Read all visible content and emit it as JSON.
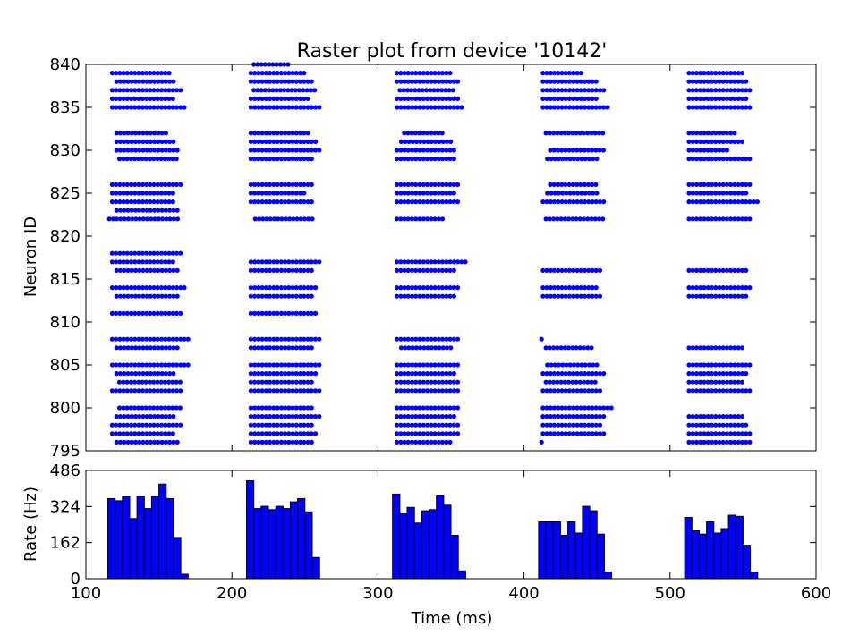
{
  "chart_data": [
    {
      "type": "scatter",
      "title": "Raster plot from device '10142'",
      "xlabel": "",
      "ylabel": "Neuron ID",
      "xlim": [
        100,
        600
      ],
      "ylim": [
        795,
        840
      ],
      "xticks": [],
      "yticks": [
        795,
        800,
        805,
        810,
        815,
        820,
        825,
        830,
        835,
        840
      ],
      "grid": false,
      "marker_color": "#0000ff",
      "bursts": [
        {
          "rows": [
            {
              "id": 839,
              "t0": 118,
              "t1": 158
            },
            {
              "id": 838,
              "t0": 121,
              "t1": 162
            },
            {
              "id": 837,
              "t0": 118,
              "t1": 165
            },
            {
              "id": 836,
              "t0": 118,
              "t1": 160
            },
            {
              "id": 835,
              "t0": 118,
              "t1": 168
            },
            {
              "id": 832,
              "t0": 121,
              "t1": 155
            },
            {
              "id": 831,
              "t0": 121,
              "t1": 160
            },
            {
              "id": 830,
              "t0": 121,
              "t1": 165
            },
            {
              "id": 829,
              "t0": 123,
              "t1": 162
            },
            {
              "id": 826,
              "t0": 118,
              "t1": 165
            },
            {
              "id": 825,
              "t0": 118,
              "t1": 160
            },
            {
              "id": 824,
              "t0": 118,
              "t1": 162
            },
            {
              "id": 823,
              "t0": 121,
              "t1": 165
            },
            {
              "id": 822,
              "t0": 116,
              "t1": 165
            },
            {
              "id": 818,
              "t0": 118,
              "t1": 165
            },
            {
              "id": 817,
              "t0": 118,
              "t1": 160
            },
            {
              "id": 816,
              "t0": 121,
              "t1": 165
            },
            {
              "id": 814,
              "t0": 118,
              "t1": 168
            },
            {
              "id": 813,
              "t0": 121,
              "t1": 165
            },
            {
              "id": 811,
              "t0": 118,
              "t1": 165
            },
            {
              "id": 808,
              "t0": 118,
              "t1": 170
            },
            {
              "id": 807,
              "t0": 121,
              "t1": 165
            },
            {
              "id": 805,
              "t0": 118,
              "t1": 170
            },
            {
              "id": 804,
              "t0": 121,
              "t1": 162
            },
            {
              "id": 803,
              "t0": 123,
              "t1": 165
            },
            {
              "id": 802,
              "t0": 118,
              "t1": 165
            },
            {
              "id": 800,
              "t0": 123,
              "t1": 165
            },
            {
              "id": 799,
              "t0": 121,
              "t1": 162
            },
            {
              "id": 798,
              "t0": 118,
              "t1": 165
            },
            {
              "id": 797,
              "t0": 118,
              "t1": 160
            },
            {
              "id": 796,
              "t0": 121,
              "t1": 165
            }
          ]
        },
        {
          "rows": [
            {
              "id": 840,
              "t0": 215,
              "t1": 240
            },
            {
              "id": 839,
              "t0": 213,
              "t1": 250
            },
            {
              "id": 838,
              "t0": 213,
              "t1": 255
            },
            {
              "id": 837,
              "t0": 215,
              "t1": 258
            },
            {
              "id": 836,
              "t0": 213,
              "t1": 252
            },
            {
              "id": 835,
              "t0": 213,
              "t1": 260
            },
            {
              "id": 832,
              "t0": 213,
              "t1": 252
            },
            {
              "id": 831,
              "t0": 213,
              "t1": 258
            },
            {
              "id": 830,
              "t0": 213,
              "t1": 262
            },
            {
              "id": 829,
              "t0": 213,
              "t1": 255
            },
            {
              "id": 826,
              "t0": 213,
              "t1": 255
            },
            {
              "id": 825,
              "t0": 213,
              "t1": 250
            },
            {
              "id": 824,
              "t0": 213,
              "t1": 255
            },
            {
              "id": 822,
              "t0": 216,
              "t1": 256
            },
            {
              "id": 817,
              "t0": 213,
              "t1": 260
            },
            {
              "id": 816,
              "t0": 213,
              "t1": 255
            },
            {
              "id": 814,
              "t0": 213,
              "t1": 258
            },
            {
              "id": 813,
              "t0": 213,
              "t1": 255
            },
            {
              "id": 811,
              "t0": 213,
              "t1": 258
            },
            {
              "id": 808,
              "t0": 213,
              "t1": 260
            },
            {
              "id": 807,
              "t0": 213,
              "t1": 255
            },
            {
              "id": 805,
              "t0": 213,
              "t1": 260
            },
            {
              "id": 804,
              "t0": 213,
              "t1": 258
            },
            {
              "id": 803,
              "t0": 213,
              "t1": 255
            },
            {
              "id": 802,
              "t0": 213,
              "t1": 262
            },
            {
              "id": 800,
              "t0": 213,
              "t1": 255
            },
            {
              "id": 799,
              "t0": 213,
              "t1": 260
            },
            {
              "id": 798,
              "t0": 213,
              "t1": 255
            },
            {
              "id": 797,
              "t0": 213,
              "t1": 258
            },
            {
              "id": 796,
              "t0": 213,
              "t1": 255
            }
          ]
        },
        {
          "rows": [
            {
              "id": 839,
              "t0": 313,
              "t1": 350
            },
            {
              "id": 838,
              "t0": 313,
              "t1": 355
            },
            {
              "id": 837,
              "t0": 315,
              "t1": 352
            },
            {
              "id": 836,
              "t0": 313,
              "t1": 356
            },
            {
              "id": 835,
              "t0": 313,
              "t1": 358
            },
            {
              "id": 832,
              "t0": 318,
              "t1": 346
            },
            {
              "id": 831,
              "t0": 316,
              "t1": 350
            },
            {
              "id": 830,
              "t0": 313,
              "t1": 354
            },
            {
              "id": 829,
              "t0": 313,
              "t1": 352
            },
            {
              "id": 826,
              "t0": 313,
              "t1": 355
            },
            {
              "id": 825,
              "t0": 313,
              "t1": 352
            },
            {
              "id": 824,
              "t0": 313,
              "t1": 356
            },
            {
              "id": 822,
              "t0": 313,
              "t1": 345
            },
            {
              "id": 817,
              "t0": 313,
              "t1": 360
            },
            {
              "id": 816,
              "t0": 313,
              "t1": 352
            },
            {
              "id": 814,
              "t0": 313,
              "t1": 356
            },
            {
              "id": 813,
              "t0": 313,
              "t1": 352
            },
            {
              "id": 808,
              "t0": 313,
              "t1": 356
            },
            {
              "id": 807,
              "t0": 316,
              "t1": 352
            },
            {
              "id": 805,
              "t0": 313,
              "t1": 356
            },
            {
              "id": 804,
              "t0": 313,
              "t1": 352
            },
            {
              "id": 803,
              "t0": 313,
              "t1": 355
            },
            {
              "id": 802,
              "t0": 313,
              "t1": 356
            },
            {
              "id": 800,
              "t0": 313,
              "t1": 355
            },
            {
              "id": 799,
              "t0": 313,
              "t1": 352
            },
            {
              "id": 798,
              "t0": 313,
              "t1": 356
            },
            {
              "id": 797,
              "t0": 313,
              "t1": 355
            },
            {
              "id": 796,
              "t0": 313,
              "t1": 350
            }
          ]
        },
        {
          "rows": [
            {
              "id": 839,
              "t0": 413,
              "t1": 440
            },
            {
              "id": 838,
              "t0": 413,
              "t1": 450
            },
            {
              "id": 837,
              "t0": 413,
              "t1": 455
            },
            {
              "id": 836,
              "t0": 413,
              "t1": 450
            },
            {
              "id": 835,
              "t0": 413,
              "t1": 458
            },
            {
              "id": 832,
              "t0": 415,
              "t1": 455
            },
            {
              "id": 830,
              "t0": 418,
              "t1": 456
            },
            {
              "id": 829,
              "t0": 416,
              "t1": 452
            },
            {
              "id": 826,
              "t0": 418,
              "t1": 450
            },
            {
              "id": 825,
              "t0": 416,
              "t1": 452
            },
            {
              "id": 824,
              "t0": 413,
              "t1": 455
            },
            {
              "id": 822,
              "t0": 415,
              "t1": 455
            },
            {
              "id": 816,
              "t0": 413,
              "t1": 452
            },
            {
              "id": 814,
              "t0": 413,
              "t1": 450
            },
            {
              "id": 813,
              "t0": 413,
              "t1": 452
            },
            {
              "id": 808,
              "t0": 412,
              "t1": 412
            },
            {
              "id": 807,
              "t0": 415,
              "t1": 448
            },
            {
              "id": 805,
              "t0": 416,
              "t1": 450
            },
            {
              "id": 804,
              "t0": 413,
              "t1": 455
            },
            {
              "id": 803,
              "t0": 415,
              "t1": 450
            },
            {
              "id": 802,
              "t0": 413,
              "t1": 452
            },
            {
              "id": 800,
              "t0": 413,
              "t1": 460
            },
            {
              "id": 799,
              "t0": 413,
              "t1": 455
            },
            {
              "id": 798,
              "t0": 413,
              "t1": 452
            },
            {
              "id": 797,
              "t0": 413,
              "t1": 455
            },
            {
              "id": 796,
              "t0": 412,
              "t1": 412
            }
          ]
        },
        {
          "rows": [
            {
              "id": 839,
              "t0": 513,
              "t1": 550
            },
            {
              "id": 838,
              "t0": 513,
              "t1": 552
            },
            {
              "id": 837,
              "t0": 513,
              "t1": 555
            },
            {
              "id": 836,
              "t0": 513,
              "t1": 552
            },
            {
              "id": 835,
              "t0": 513,
              "t1": 556
            },
            {
              "id": 832,
              "t0": 513,
              "t1": 545
            },
            {
              "id": 831,
              "t0": 513,
              "t1": 550
            },
            {
              "id": 830,
              "t0": 513,
              "t1": 540
            },
            {
              "id": 829,
              "t0": 513,
              "t1": 555
            },
            {
              "id": 826,
              "t0": 513,
              "t1": 555
            },
            {
              "id": 825,
              "t0": 513,
              "t1": 552
            },
            {
              "id": 824,
              "t0": 513,
              "t1": 560
            },
            {
              "id": 822,
              "t0": 513,
              "t1": 555
            },
            {
              "id": 816,
              "t0": 513,
              "t1": 552
            },
            {
              "id": 814,
              "t0": 513,
              "t1": 556
            },
            {
              "id": 813,
              "t0": 513,
              "t1": 552
            },
            {
              "id": 807,
              "t0": 513,
              "t1": 550
            },
            {
              "id": 805,
              "t0": 513,
              "t1": 555
            },
            {
              "id": 804,
              "t0": 513,
              "t1": 552
            },
            {
              "id": 803,
              "t0": 513,
              "t1": 550
            },
            {
              "id": 802,
              "t0": 513,
              "t1": 555
            },
            {
              "id": 799,
              "t0": 513,
              "t1": 550
            },
            {
              "id": 798,
              "t0": 513,
              "t1": 552
            },
            {
              "id": 797,
              "t0": 513,
              "t1": 556
            },
            {
              "id": 796,
              "t0": 513,
              "t1": 555
            }
          ]
        }
      ]
    },
    {
      "type": "bar",
      "title": "",
      "xlabel": "Time (ms)",
      "ylabel": "Rate (Hz)",
      "xlim": [
        100,
        600
      ],
      "ylim": [
        0,
        486
      ],
      "xticks": [
        100,
        200,
        300,
        400,
        500,
        600
      ],
      "yticks": [
        0,
        162,
        324,
        486
      ],
      "bar_width": 5,
      "bar_color": "#0000ff",
      "bins": [
        115,
        120,
        125,
        130,
        135,
        140,
        145,
        150,
        155,
        160,
        165,
        210,
        215,
        220,
        225,
        230,
        235,
        240,
        245,
        250,
        255,
        310,
        315,
        320,
        325,
        330,
        335,
        340,
        345,
        350,
        355,
        410,
        415,
        420,
        425,
        430,
        435,
        440,
        445,
        450,
        455,
        510,
        515,
        520,
        525,
        530,
        535,
        540,
        545,
        550,
        555
      ],
      "values": [
        360,
        350,
        370,
        270,
        370,
        315,
        370,
        425,
        360,
        185,
        20,
        440,
        315,
        325,
        310,
        325,
        315,
        345,
        360,
        300,
        95,
        380,
        295,
        320,
        250,
        305,
        310,
        375,
        330,
        195,
        35,
        255,
        255,
        255,
        195,
        255,
        205,
        325,
        305,
        200,
        30,
        275,
        215,
        200,
        255,
        205,
        225,
        285,
        280,
        150,
        30
      ]
    }
  ]
}
